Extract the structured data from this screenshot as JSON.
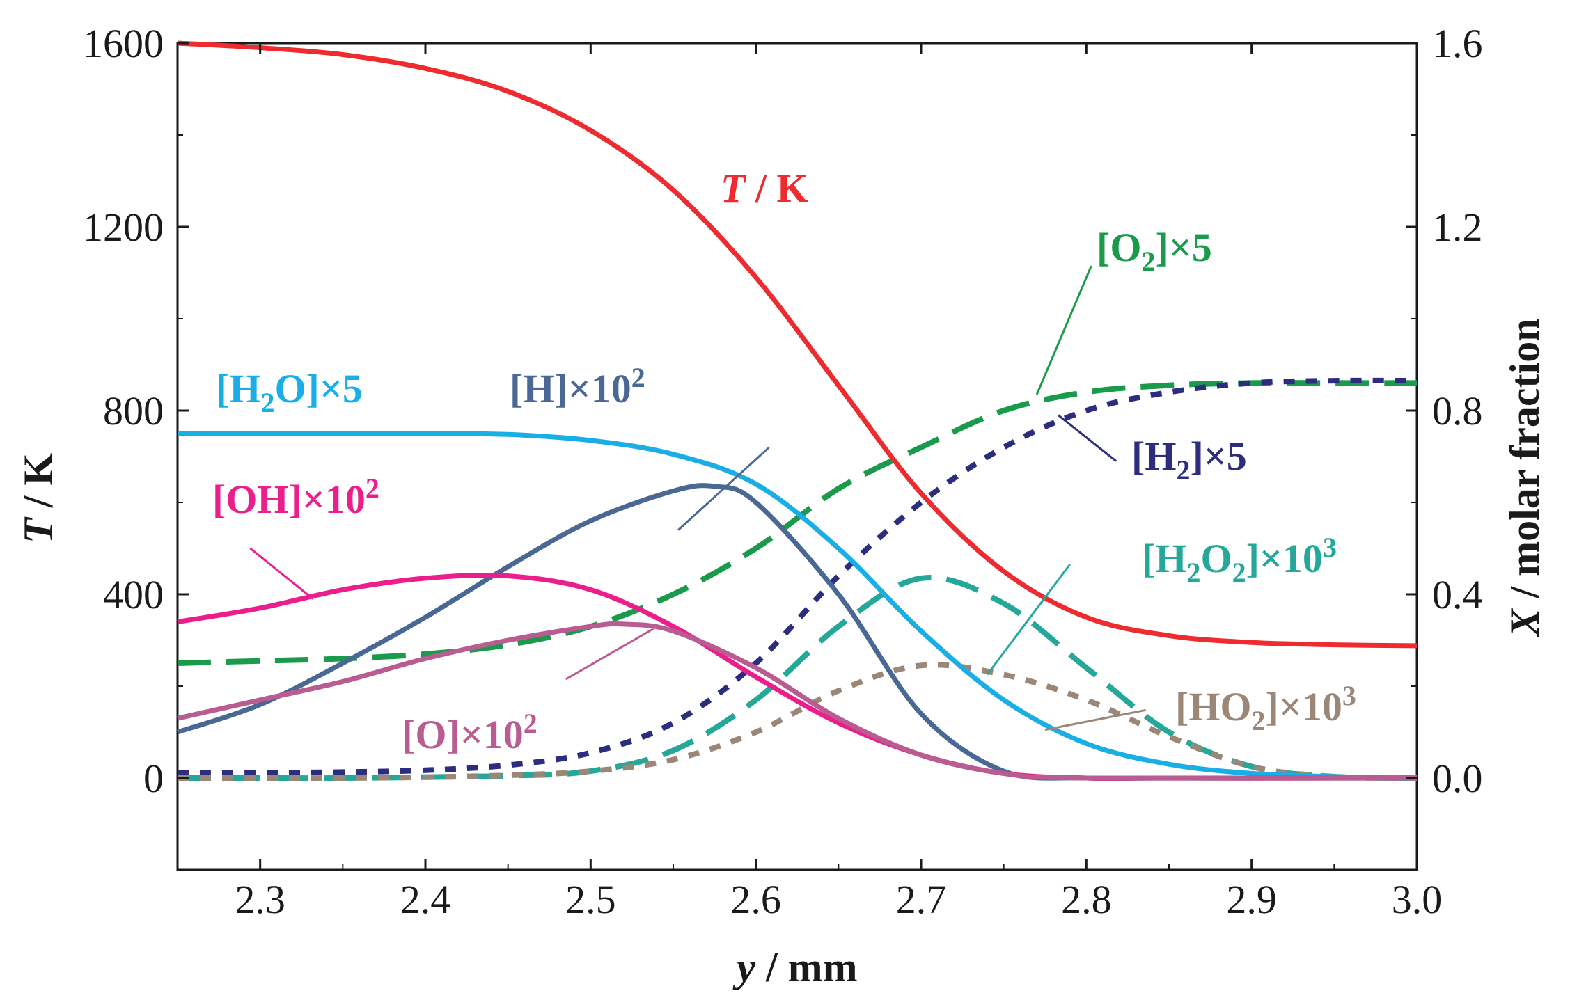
{
  "chart_data": {
    "type": "line",
    "xlabel": {
      "italic": "y",
      "rest": " / mm"
    },
    "ylabel_left": {
      "italic": "T",
      "rest": " / K"
    },
    "ylabel_right": {
      "italic": "X",
      "rest": " / molar fraction"
    },
    "xlim": [
      2.25,
      3.0
    ],
    "ylim_left": [
      -200,
      1600
    ],
    "ylim_right": [
      -0.2,
      1.6
    ],
    "x_ticks": [
      2.3,
      2.4,
      2.5,
      2.6,
      2.7,
      2.8,
      2.9,
      3.0
    ],
    "x_tick_labels": [
      "2.3",
      "2.4",
      "2.5",
      "2.6",
      "2.7",
      "2.8",
      "2.9",
      "3.0"
    ],
    "y_left_ticks": [
      0,
      400,
      800,
      1200,
      1600
    ],
    "y_left_tick_labels": [
      "0",
      "400",
      "800",
      "1200",
      "1600"
    ],
    "y_right_ticks": [
      0.0,
      0.4,
      0.8,
      1.2,
      1.6
    ],
    "y_right_tick_labels": [
      "0.0",
      "0.4",
      "0.8",
      "1.2",
      "1.6"
    ],
    "series": [
      {
        "name": "T",
        "axis": "left",
        "color": "#ee2b2f",
        "dash": "solid",
        "x": [
          2.25,
          2.3,
          2.35,
          2.4,
          2.45,
          2.5,
          2.55,
          2.6,
          2.65,
          2.7,
          2.75,
          2.8,
          2.85,
          2.9,
          2.95,
          3.0
        ],
        "y": [
          1600,
          1590,
          1575,
          1545,
          1495,
          1410,
          1280,
          1090,
          855,
          620,
          450,
          350,
          310,
          295,
          290,
          288
        ]
      },
      {
        "name": "[H2O]x5",
        "axis": "right",
        "color": "#1aaee6",
        "dash": "solid",
        "x": [
          2.25,
          2.3,
          2.35,
          2.4,
          2.45,
          2.5,
          2.55,
          2.6,
          2.65,
          2.7,
          2.75,
          2.8,
          2.85,
          2.9,
          2.95,
          3.0
        ],
        "y": [
          0.75,
          0.75,
          0.75,
          0.75,
          0.748,
          0.735,
          0.705,
          0.64,
          0.5,
          0.32,
          0.17,
          0.075,
          0.03,
          0.01,
          0.003,
          0.0
        ]
      },
      {
        "name": "[H]x10^2",
        "axis": "right",
        "color": "#4a6894",
        "dash": "solid",
        "x": [
          2.25,
          2.3,
          2.35,
          2.4,
          2.45,
          2.5,
          2.55,
          2.575,
          2.6,
          2.65,
          2.7,
          2.75,
          2.8,
          2.85,
          3.0
        ],
        "y": [
          0.1,
          0.16,
          0.25,
          0.35,
          0.46,
          0.56,
          0.625,
          0.635,
          0.6,
          0.4,
          0.14,
          0.015,
          0.0,
          0.0,
          0.0
        ]
      },
      {
        "name": "[OH]x10^2",
        "axis": "right",
        "color": "#ec1e8c",
        "dash": "solid",
        "x": [
          2.25,
          2.3,
          2.35,
          2.4,
          2.45,
          2.5,
          2.55,
          2.6,
          2.65,
          2.7,
          2.75,
          2.8,
          2.85,
          3.0
        ],
        "y": [
          0.34,
          0.37,
          0.41,
          0.435,
          0.44,
          0.41,
          0.33,
          0.22,
          0.12,
          0.05,
          0.01,
          0.0,
          0.0,
          0.0
        ]
      },
      {
        "name": "[O]x10^2",
        "axis": "right",
        "color": "#b85c92",
        "dash": "solid",
        "x": [
          2.25,
          2.3,
          2.35,
          2.4,
          2.45,
          2.5,
          2.52,
          2.55,
          2.6,
          2.65,
          2.7,
          2.75,
          2.8,
          3.0
        ],
        "y": [
          0.13,
          0.17,
          0.21,
          0.26,
          0.3,
          0.33,
          0.335,
          0.32,
          0.24,
          0.13,
          0.05,
          0.01,
          0.0,
          0.0
        ]
      },
      {
        "name": "[O2]x5",
        "axis": "right",
        "color": "#1a9a4b",
        "dash": "longdash",
        "x": [
          2.25,
          2.3,
          2.35,
          2.4,
          2.45,
          2.5,
          2.55,
          2.6,
          2.65,
          2.7,
          2.75,
          2.8,
          2.85,
          2.9,
          2.95,
          3.0
        ],
        "y": [
          0.25,
          0.255,
          0.26,
          0.27,
          0.29,
          0.33,
          0.4,
          0.5,
          0.63,
          0.72,
          0.8,
          0.84,
          0.855,
          0.86,
          0.86,
          0.86
        ]
      },
      {
        "name": "[H2]x5",
        "axis": "right",
        "color": "#2d2d7f",
        "dash": "shortdash",
        "x": [
          2.25,
          2.3,
          2.35,
          2.4,
          2.45,
          2.5,
          2.55,
          2.6,
          2.65,
          2.7,
          2.75,
          2.8,
          2.85,
          2.9,
          2.95,
          3.0
        ],
        "y": [
          0.012,
          0.012,
          0.013,
          0.017,
          0.028,
          0.055,
          0.12,
          0.25,
          0.44,
          0.6,
          0.72,
          0.8,
          0.84,
          0.86,
          0.865,
          0.865
        ]
      },
      {
        "name": "[H2O2]x10^3",
        "axis": "right",
        "color": "#25a79a",
        "dash": "longdash",
        "x": [
          2.25,
          2.3,
          2.35,
          2.4,
          2.45,
          2.5,
          2.55,
          2.6,
          2.65,
          2.7,
          2.75,
          2.8,
          2.85,
          2.9,
          2.95,
          3.0
        ],
        "y": [
          0.0,
          0.0,
          0.0,
          0.002,
          0.005,
          0.015,
          0.06,
          0.17,
          0.33,
          0.435,
          0.38,
          0.24,
          0.1,
          0.025,
          0.003,
          0.0
        ]
      },
      {
        "name": "[HO2]x10^3",
        "axis": "right",
        "color": "#9a8778",
        "dash": "shortdash",
        "x": [
          2.25,
          2.3,
          2.35,
          2.4,
          2.45,
          2.5,
          2.55,
          2.6,
          2.65,
          2.7,
          2.75,
          2.8,
          2.85,
          2.9,
          2.95,
          3.0
        ],
        "y": [
          0.0,
          0.0,
          0.0,
          0.002,
          0.006,
          0.015,
          0.04,
          0.1,
          0.19,
          0.245,
          0.225,
          0.17,
          0.09,
          0.025,
          0.003,
          0.0
        ]
      }
    ],
    "labels": [
      {
        "id": "T",
        "segments": [
          {
            "t": "T",
            "italic": true
          },
          {
            "t": " / K"
          }
        ],
        "color": "#ee2b2f"
      },
      {
        "id": "O2",
        "segments": [
          {
            "t": "[O"
          },
          {
            "t": "2",
            "sub": true
          },
          {
            "t": "]×5"
          }
        ],
        "color": "#1a9a4b"
      },
      {
        "id": "H2O",
        "segments": [
          {
            "t": "[H"
          },
          {
            "t": "2",
            "sub": true
          },
          {
            "t": "O]×5"
          }
        ],
        "color": "#1aaee6"
      },
      {
        "id": "H",
        "segments": [
          {
            "t": "[H]×10"
          },
          {
            "t": "2",
            "sup": true
          }
        ],
        "color": "#4a6894"
      },
      {
        "id": "H2",
        "segments": [
          {
            "t": "[H"
          },
          {
            "t": "2",
            "sub": true
          },
          {
            "t": "]×5"
          }
        ],
        "color": "#2d2d7f"
      },
      {
        "id": "OH",
        "segments": [
          {
            "t": "[OH]×10"
          },
          {
            "t": "2",
            "sup": true
          }
        ],
        "color": "#ec1e8c"
      },
      {
        "id": "H2O2",
        "segments": [
          {
            "t": "[H"
          },
          {
            "t": "2",
            "sub": true
          },
          {
            "t": "O"
          },
          {
            "t": "2",
            "sub": true
          },
          {
            "t": "]×10"
          },
          {
            "t": "3",
            "sup": true
          }
        ],
        "color": "#25a79a"
      },
      {
        "id": "O",
        "segments": [
          {
            "t": "[O]×10"
          },
          {
            "t": "2",
            "sup": true
          }
        ],
        "color": "#b85c92"
      },
      {
        "id": "HO2",
        "segments": [
          {
            "t": "[HO"
          },
          {
            "t": "2",
            "sub": true
          },
          {
            "t": "]×10"
          },
          {
            "t": "3",
            "sup": true
          }
        ],
        "color": "#9a8778"
      }
    ],
    "leaders": [
      {
        "label": "O2",
        "from": [
          2.803,
          1.115
        ],
        "to": [
          2.77,
          0.835
        ]
      },
      {
        "label": "H",
        "from": [
          2.608,
          0.72
        ],
        "to": [
          2.553,
          0.54
        ]
      },
      {
        "label": "H2",
        "from": [
          2.818,
          0.69
        ],
        "to": [
          2.783,
          0.79
        ]
      },
      {
        "label": "OH",
        "from": [
          2.294,
          0.5
        ],
        "to": [
          2.332,
          0.39
        ]
      },
      {
        "label": "H2O2",
        "from": [
          2.79,
          0.465
        ],
        "to": [
          2.74,
          0.225
        ]
      },
      {
        "label": "O",
        "from": [
          2.485,
          0.215
        ],
        "to": [
          2.538,
          0.325
        ]
      },
      {
        "label": "HO2",
        "from": [
          2.836,
          0.148
        ],
        "to": [
          2.775,
          0.105
        ]
      }
    ]
  }
}
